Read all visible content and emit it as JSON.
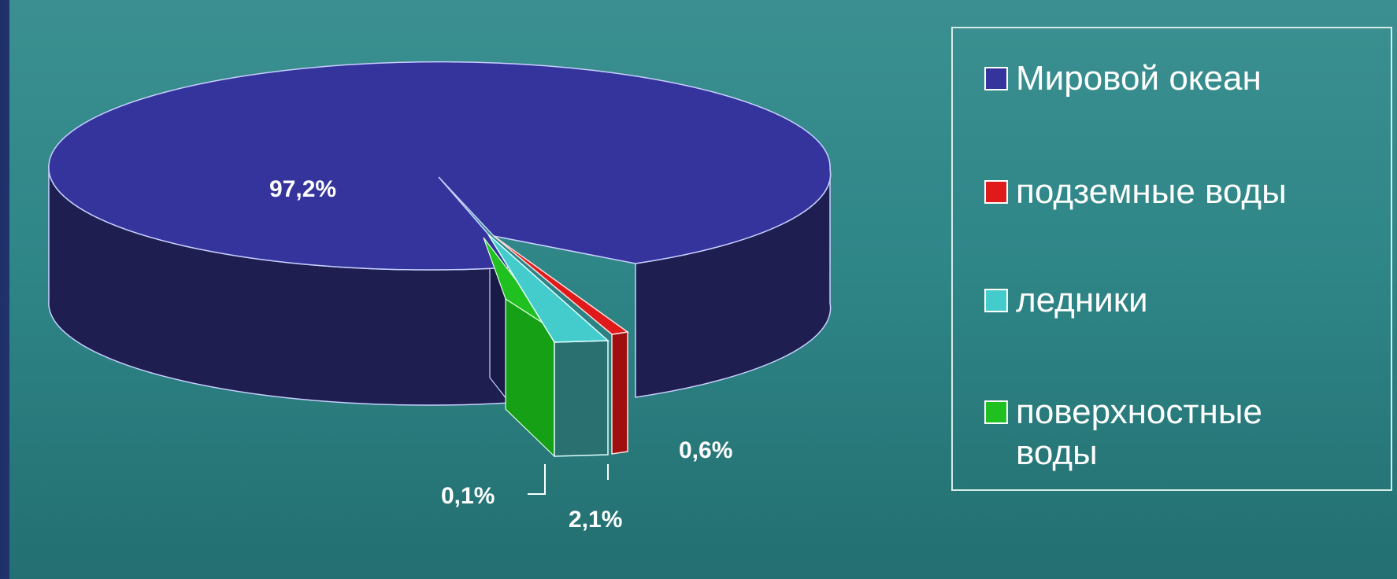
{
  "chart_data": {
    "type": "pie",
    "title": "",
    "legend_position": "right",
    "slices": [
      {
        "name": "Мировой океан",
        "value": 97.2,
        "label": "97,2%",
        "color": "#34349c",
        "side_color": "#1e1e50"
      },
      {
        "name": "подземные воды",
        "value": 0.6,
        "label": "0,6%",
        "color": "#e01a1a",
        "side_color": "#a00f0f"
      },
      {
        "name": "ледники",
        "value": 2.1,
        "label": "2,1%",
        "color": "#44cccc",
        "side_color": "#2a7070"
      },
      {
        "name": "поверхностные воды",
        "value": 0.1,
        "label": "0,1%",
        "color": "#20c020",
        "side_color": "#138a13"
      }
    ]
  }
}
